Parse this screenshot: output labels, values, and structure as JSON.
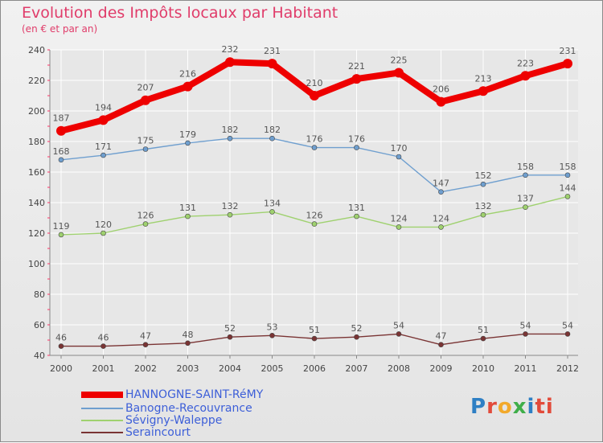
{
  "header": {
    "title": "Evolution des Impôts locaux par Habitant",
    "subtitle": "(en € et par an)"
  },
  "colors": {
    "title": "#e03c6a",
    "legend_text": "#3d5fd8",
    "grid": "#ffffff",
    "axis_text": "#444444",
    "label_text": "#555555"
  },
  "logo": {
    "text": "Proxiti",
    "letters": [
      "P",
      "r",
      "o",
      "x",
      "i",
      "ti"
    ]
  },
  "chart_data": {
    "type": "line",
    "title": "Evolution des Impôts locaux par Habitant",
    "subtitle": "(en € et par an)",
    "xlabel": "",
    "ylabel": "",
    "ylim": [
      40,
      240
    ],
    "yticks": [
      40,
      60,
      80,
      100,
      120,
      140,
      160,
      180,
      200,
      220,
      240
    ],
    "grid": true,
    "legend_position": "bottom-left",
    "categories": [
      "2000",
      "2001",
      "2002",
      "2003",
      "2004",
      "2005",
      "2006",
      "2007",
      "2008",
      "2009",
      "2010",
      "2011",
      "2012"
    ],
    "series": [
      {
        "name": "HANNOGNE-SAINT-RéMY",
        "color": "#ee0000",
        "width": 8,
        "marker": 6,
        "values": [
          187,
          194,
          207,
          216,
          232,
          231,
          210,
          221,
          225,
          206,
          213,
          223,
          231
        ]
      },
      {
        "name": "Banogne-Recouvrance",
        "color": "#6f9fcf",
        "width": 1.4,
        "marker": 3,
        "values": [
          168,
          171,
          175,
          179,
          182,
          182,
          176,
          176,
          170,
          147,
          152,
          158,
          158
        ]
      },
      {
        "name": "Sévigny-Waleppe",
        "color": "#9fd16f",
        "width": 1.4,
        "marker": 3,
        "values": [
          119,
          120,
          126,
          131,
          132,
          134,
          126,
          131,
          124,
          124,
          132,
          137,
          144
        ]
      },
      {
        "name": "Seraincourt",
        "color": "#7a3434",
        "width": 1.4,
        "marker": 3,
        "values": [
          46,
          46,
          47,
          48,
          52,
          53,
          51,
          52,
          54,
          47,
          51,
          54,
          54
        ]
      }
    ]
  }
}
